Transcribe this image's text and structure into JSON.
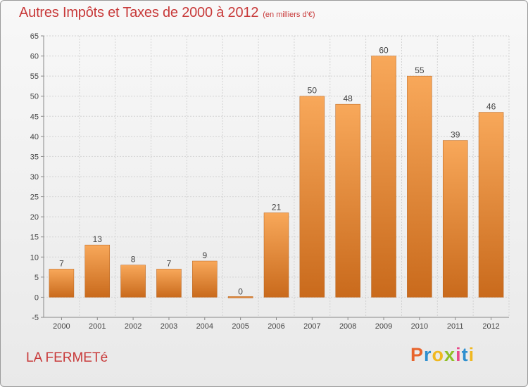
{
  "header": {
    "title": "Autres Impôts et Taxes de 2000 à 2012",
    "subtitle": "(en milliers d'€)"
  },
  "footer": {
    "place_name": "LA FERMETé",
    "logo_text": "Proxiti",
    "logo_colors": [
      "#e8642c",
      "#2e8fcf",
      "#f0b820",
      "#8fbf26",
      "#e84a8a",
      "#2e8fcf",
      "#f0b820"
    ]
  },
  "chart_data": {
    "type": "bar",
    "title": "Autres Impôts et Taxes de 2000 à 2012",
    "subtitle": "(en milliers d'€)",
    "xlabel": "",
    "ylabel": "",
    "categories": [
      "2000",
      "2001",
      "2002",
      "2003",
      "2004",
      "2005",
      "2006",
      "2007",
      "2008",
      "2009",
      "2010",
      "2011",
      "2012"
    ],
    "values": [
      7,
      13,
      8,
      7,
      9,
      0,
      21,
      50,
      48,
      60,
      55,
      39,
      46
    ],
    "data_labels": [
      "7",
      "13",
      "8",
      "7",
      "9",
      "0",
      "21",
      "50",
      "48",
      "60",
      "55",
      "39",
      "46"
    ],
    "ylim": [
      -5,
      65
    ],
    "yticks": [
      -5,
      0,
      5,
      10,
      15,
      20,
      25,
      30,
      35,
      40,
      45,
      50,
      55,
      60,
      65
    ],
    "grid": true,
    "bar_color_top": "#f8a85a",
    "bar_color_bottom": "#c96a1c",
    "text_color": "#444444",
    "grid_color": "#d2d2d2"
  }
}
